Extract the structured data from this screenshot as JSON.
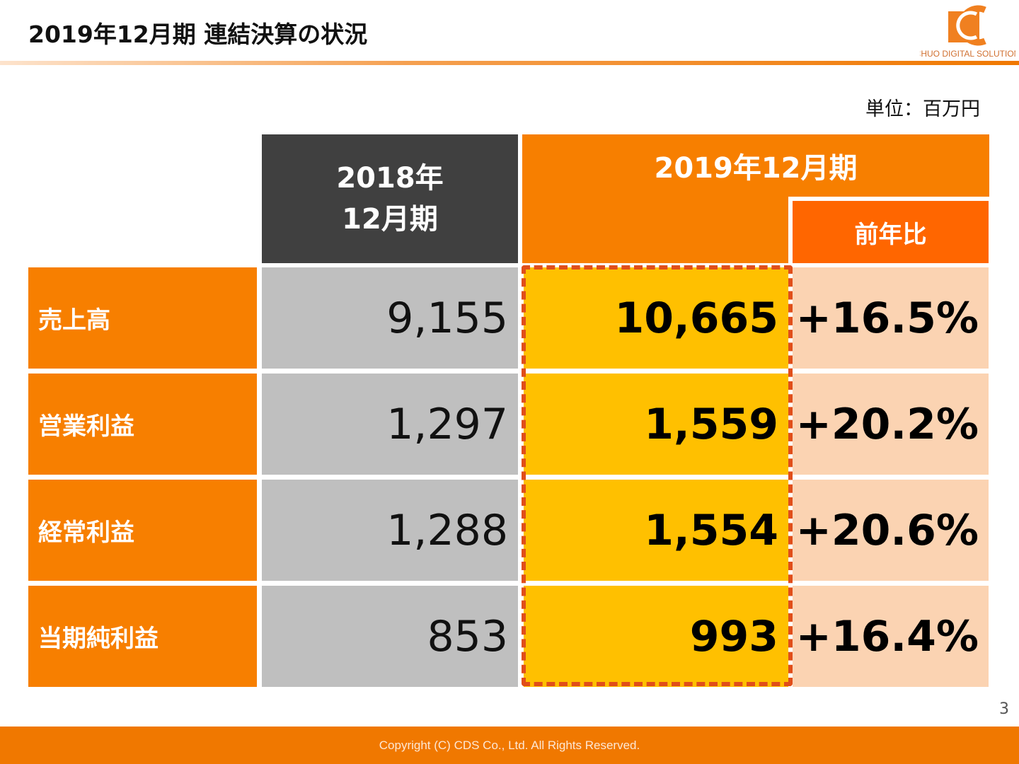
{
  "header": {
    "title": "2019年12月期 連結決算の状況",
    "logo_text": "CHUO DIGITAL SOLUTION"
  },
  "unit": "単位：百万円",
  "table": {
    "col_prev": [
      "2018年",
      "12月期"
    ],
    "col_cur": "2019年12月期",
    "col_yoy": "前年比",
    "rows": [
      {
        "label": "売上高",
        "prev": "9,155",
        "cur": "10,665",
        "yoy": "+16.5%"
      },
      {
        "label": "営業利益",
        "prev": "1,297",
        "cur": "1,559",
        "yoy": "+20.2%"
      },
      {
        "label": "経常利益",
        "prev": "1,288",
        "cur": "1,554",
        "yoy": "+20.6%"
      },
      {
        "label": "当期純利益",
        "prev": "853",
        "cur": "993",
        "yoy": "+16.4%"
      }
    ]
  },
  "page_number": "3",
  "footer": "Copyright (C)  CDS Co., Ltd. All Rights Reserved.",
  "colors": {
    "orange": "#f77f00",
    "dark": "#404040",
    "gray": "#bfbfbf",
    "yellow": "#ffc000",
    "peach": "#fbd3b2",
    "highlight": "#e04e1a"
  }
}
